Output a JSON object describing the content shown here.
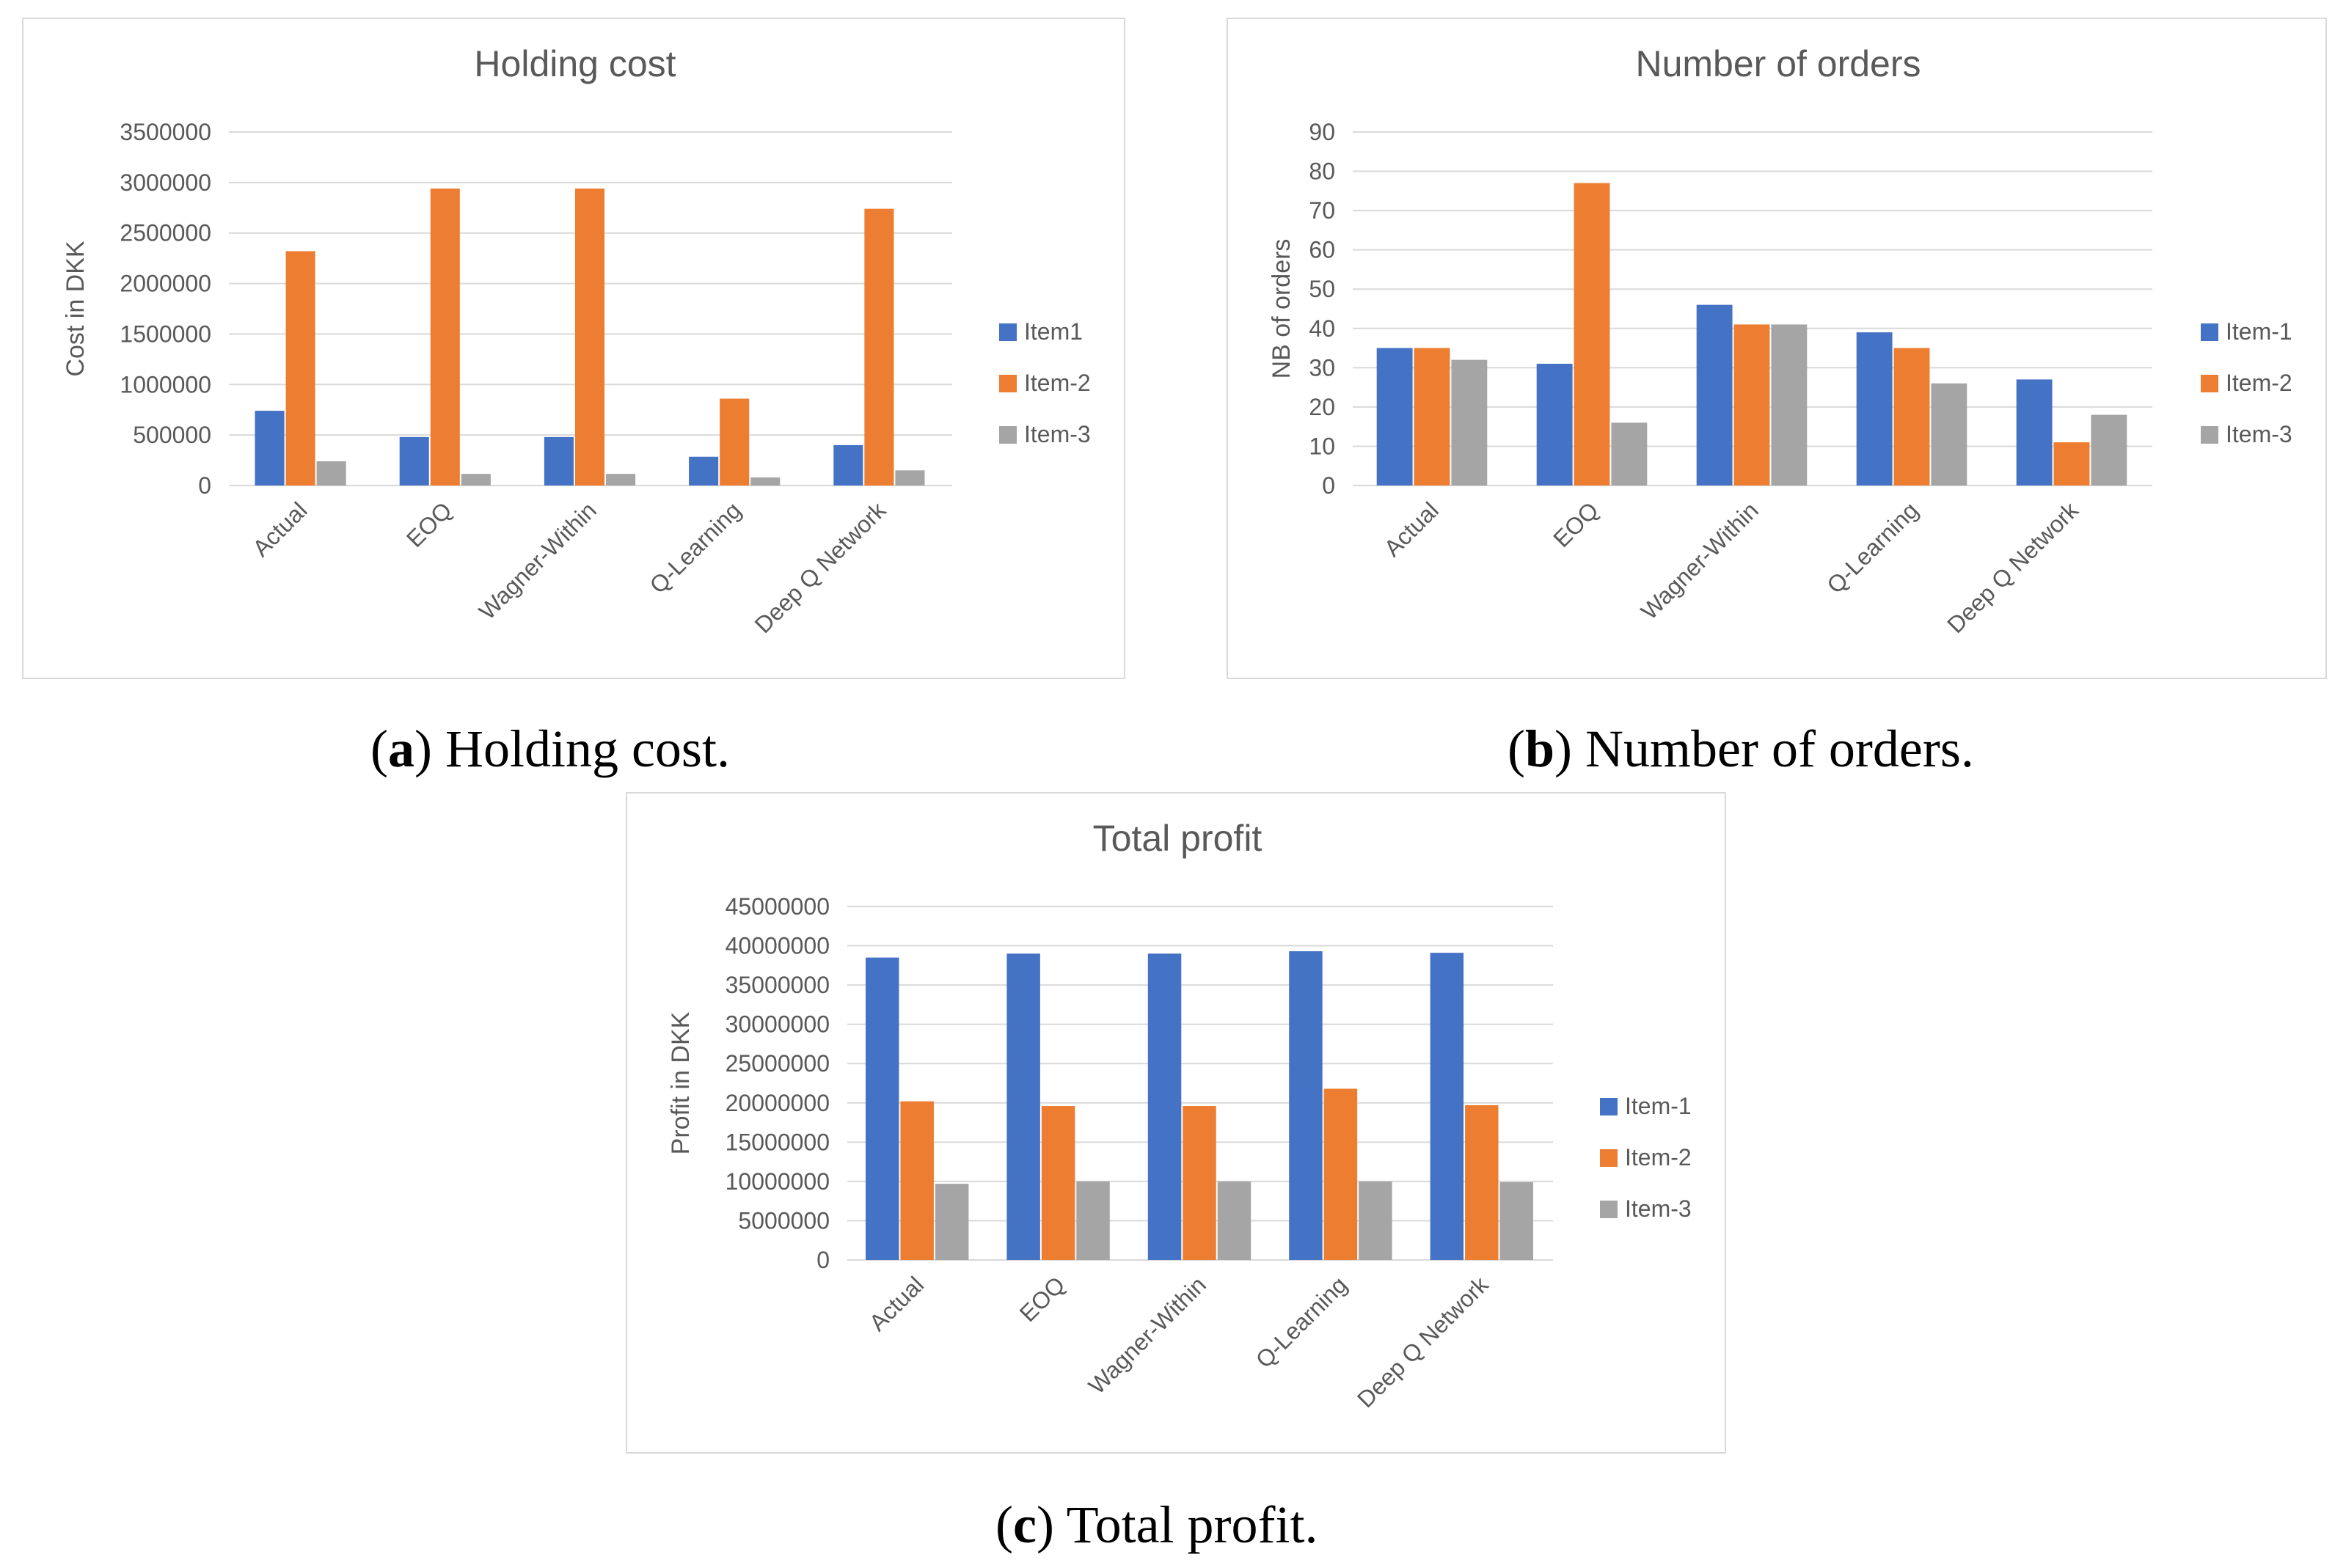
{
  "captions": [
    {
      "letter": "a",
      "text": "Holding cost."
    },
    {
      "letter": "b",
      "text": "Number of orders."
    },
    {
      "letter": "c",
      "text": "Total profit."
    }
  ],
  "colors": {
    "item1": "#4472C4",
    "item2": "#ED7D31",
    "item3": "#A5A5A5",
    "grid": "#d9d9d9",
    "text": "#595959"
  },
  "chart_data": [
    {
      "type": "bar",
      "title": "Holding cost",
      "xlabel": "",
      "ylabel": "Cost in DKK",
      "categories": [
        "Actual",
        "EOQ",
        "Wagner-Within",
        "Q-Learning",
        "Deep Q Network"
      ],
      "series": [
        {
          "name": "Item1",
          "values": [
            740000,
            480000,
            480000,
            285000,
            400000
          ]
        },
        {
          "name": "Item-2",
          "values": [
            2320000,
            2940000,
            2940000,
            860000,
            2740000
          ]
        },
        {
          "name": "Item-3",
          "values": [
            240000,
            115000,
            115000,
            80000,
            150000
          ]
        }
      ],
      "ylim": [
        0,
        3500000
      ],
      "yticks": [
        "0",
        "500000",
        "1000000",
        "1500000",
        "2000000",
        "2500000",
        "3000000",
        "3500000"
      ],
      "legend_position": "right",
      "grid": true
    },
    {
      "type": "bar",
      "title": "Number of orders",
      "xlabel": "",
      "ylabel": "NB of orders",
      "categories": [
        "Actual",
        "EOQ",
        "Wagner-Within",
        "Q-Learning",
        "Deep Q Network"
      ],
      "series": [
        {
          "name": "Item-1",
          "values": [
            35,
            31,
            46,
            39,
            27
          ]
        },
        {
          "name": "Item-2",
          "values": [
            35,
            77,
            41,
            35,
            11
          ]
        },
        {
          "name": "Item-3",
          "values": [
            32,
            16,
            41,
            26,
            18
          ]
        }
      ],
      "ylim": [
        0,
        90
      ],
      "yticks": [
        "0",
        "10",
        "20",
        "30",
        "40",
        "50",
        "60",
        "70",
        "80",
        "90"
      ],
      "legend_position": "right",
      "grid": true
    },
    {
      "type": "bar",
      "title": "Total profit",
      "xlabel": "",
      "ylabel": "Profit in DKK",
      "categories": [
        "Actual",
        "EOQ",
        "Wagner-Within",
        "Q-Learning",
        "Deep Q Network"
      ],
      "series": [
        {
          "name": "Item-1",
          "values": [
            38500000,
            39000000,
            39000000,
            39300000,
            39100000
          ]
        },
        {
          "name": "Item-2",
          "values": [
            20200000,
            19600000,
            19600000,
            21800000,
            19700000
          ]
        },
        {
          "name": "Item-3",
          "values": [
            9700000,
            10000000,
            10000000,
            10000000,
            9900000
          ]
        }
      ],
      "ylim": [
        0,
        45000000
      ],
      "yticks": [
        "0",
        "5000000",
        "10000000",
        "15000000",
        "20000000",
        "25000000",
        "30000000",
        "35000000",
        "40000000",
        "45000000"
      ],
      "legend_position": "right",
      "grid": true
    }
  ]
}
